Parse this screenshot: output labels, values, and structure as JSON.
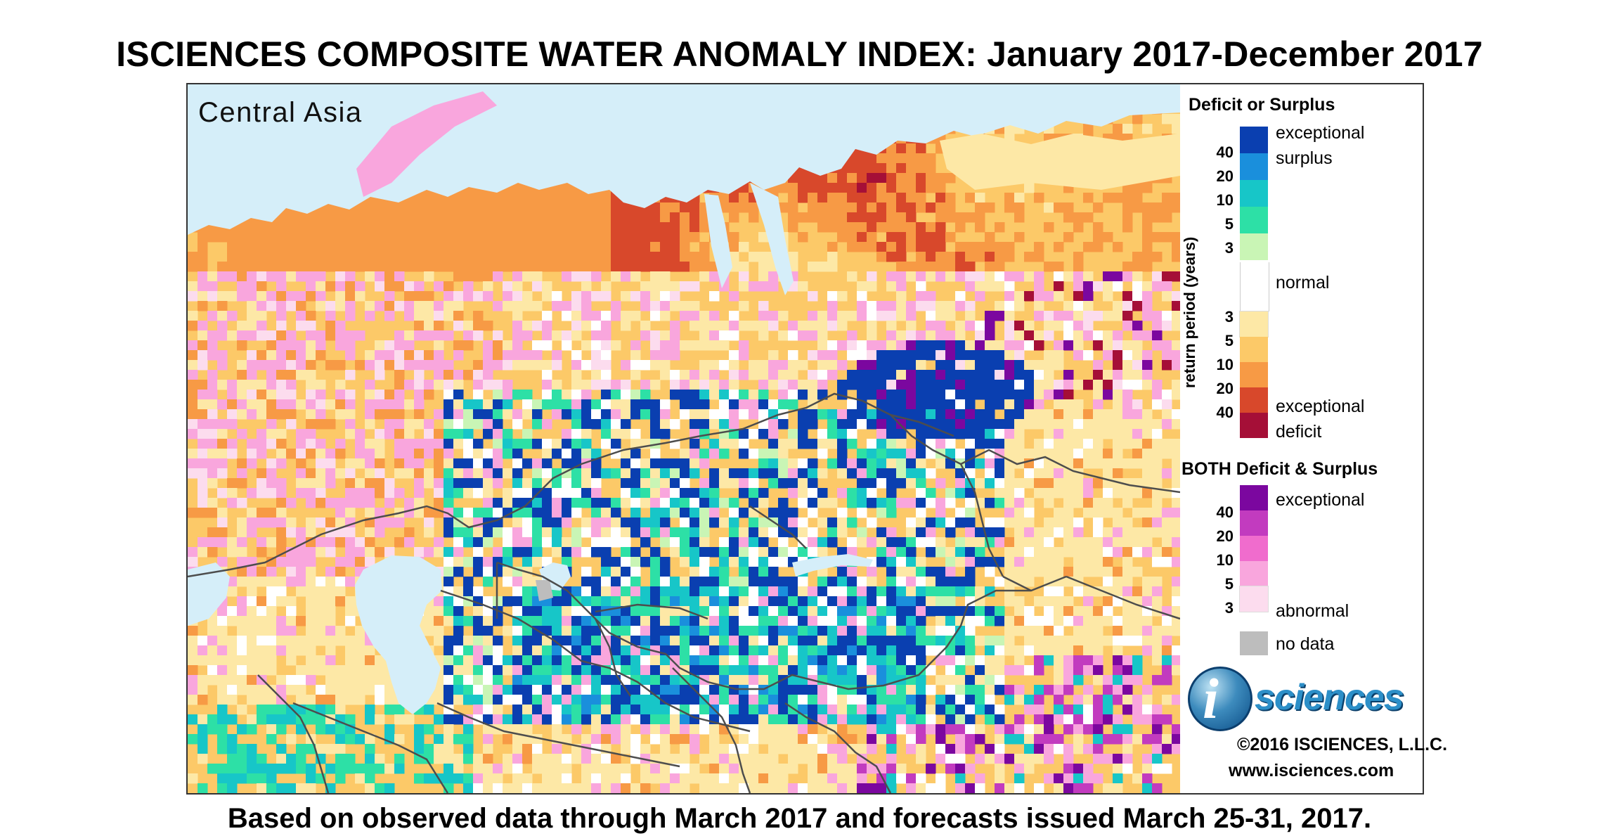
{
  "title": "ISCIENCES COMPOSITE WATER ANOMALY INDEX: January 2017-December 2017",
  "subtitle": "Based on observed data through March 2017 and forecasts issued March 25-31, 2017.",
  "map": {
    "region_label": "Central Asia",
    "palette": {
      "water": "#d5eef9",
      "gray": "#bdbdbd",
      "white": "#ffffff",
      "deficit_3": "#fde8a6",
      "deficit_5": "#fcc968",
      "deficit_10": "#f79a45",
      "deficit_20": "#d8482b",
      "deficit_40": "#a50f37",
      "surplus_3": "#c9f5b5",
      "surplus_5": "#2de0a6",
      "surplus_10": "#17c6c8",
      "surplus_20": "#1a8fdc",
      "surplus_40": "#0a3fb0",
      "both_3": "#fcdcee",
      "both_5": "#f9a6dd",
      "both_10": "#f06ccd",
      "both_20": "#c23bbf",
      "both_40": "#7b079f",
      "border": "#4d4d4d"
    }
  },
  "legend": {
    "section1_title": "Deficit or Surplus",
    "axis_label": "return period (years)",
    "exceptional_surplus_1": "exceptional",
    "exceptional_surplus_2": "surplus",
    "normal": "normal",
    "exceptional_deficit_1": "exceptional",
    "exceptional_deficit_2": "deficit",
    "surplus_ticks": [
      "40",
      "20",
      "10",
      "5",
      "3"
    ],
    "deficit_ticks": [
      "3",
      "5",
      "10",
      "20",
      "40"
    ],
    "section2_title": "BOTH Deficit & Surplus",
    "both_exceptional": "exceptional",
    "both_abnormal": "abnormal",
    "both_ticks": [
      "40",
      "20",
      "10",
      "5",
      "3"
    ],
    "no_data": "no data",
    "swatch_colors_surplus": [
      "#0a3fb0",
      "#1a8fdc",
      "#17c6c8",
      "#2de0a6",
      "#c9f5b5"
    ],
    "swatch_color_normal": "#ffffff",
    "swatch_colors_deficit": [
      "#fde8a6",
      "#fcc968",
      "#f79a45",
      "#d8482b",
      "#a50f37"
    ],
    "swatch_colors_both": [
      "#7b079f",
      "#c23bbf",
      "#f06ccd",
      "#f9a6dd",
      "#fcdcee"
    ],
    "swatch_color_nodata": "#bdbdbd"
  },
  "branding": {
    "logo_letter": "i",
    "logo_word": "sciences",
    "copyright": "©2016 ISCIENCES, L.L.C.",
    "website": "www.isciences.com"
  }
}
